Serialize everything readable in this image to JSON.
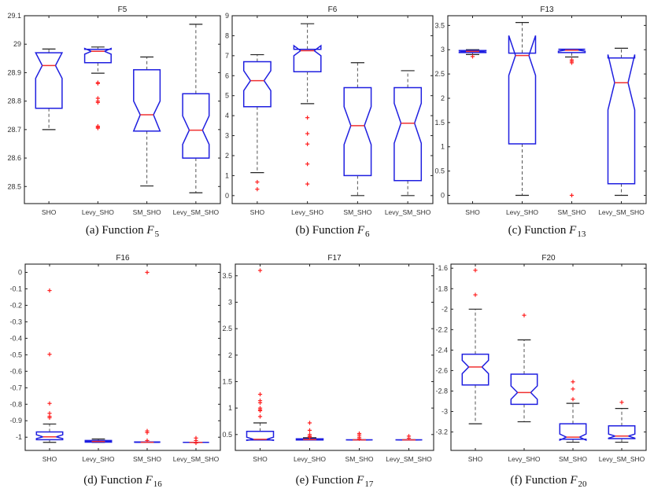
{
  "colors": {
    "box": "#1f1fe0",
    "median": "#f03030",
    "whisker": "#555555",
    "outlier": "#ff2020",
    "axis": "#222222"
  },
  "chart_data": [
    {
      "type": "boxplot",
      "title": "F5",
      "caption": {
        "prefix": "(a) Function ",
        "var": "F",
        "sub": "5"
      },
      "categories": [
        "SHO",
        "Levy_SHO",
        "SM_SHO",
        "Levy_SM_SHO"
      ],
      "ylim": [
        28.44,
        29.1
      ],
      "yticks": [
        28.5,
        28.6,
        28.7,
        28.8,
        28.9,
        29,
        29.1
      ],
      "ytick_labels": [
        "28.5",
        "28.6",
        "28.7",
        "28.8",
        "28.9",
        "29",
        "29.1"
      ],
      "boxes": [
        {
          "q1": 28.775,
          "median": 28.925,
          "q3": 28.97,
          "notch_lo": 28.88,
          "notch_hi": 28.97,
          "wlo": 28.7,
          "whi": 28.983,
          "outliers": []
        },
        {
          "q1": 28.935,
          "median": 28.975,
          "q3": 28.982,
          "notch_lo": 28.965,
          "notch_hi": 28.985,
          "wlo": 28.898,
          "whi": 28.99,
          "outliers": [
            28.862,
            28.865,
            28.81,
            28.8,
            28.795,
            28.712,
            28.708,
            28.705
          ]
        },
        {
          "q1": 28.695,
          "median": 28.752,
          "q3": 28.91,
          "notch_lo": 28.695,
          "notch_hi": 28.8,
          "wlo": 28.502,
          "whi": 28.955,
          "outliers": []
        },
        {
          "q1": 28.6,
          "median": 28.698,
          "q3": 28.826,
          "notch_lo": 28.648,
          "notch_hi": 28.748,
          "wlo": 28.478,
          "whi": 29.07,
          "outliers": []
        }
      ]
    },
    {
      "type": "boxplot",
      "title": "F6",
      "caption": {
        "prefix": "(b) Function ",
        "var": "F",
        "sub": "6"
      },
      "categories": [
        "SHO",
        "Levy_SHO",
        "SM_SHO",
        "Levy_SM_SHO"
      ],
      "ylim": [
        -0.4,
        9
      ],
      "yticks": [
        0,
        1,
        2,
        3,
        4,
        5,
        6,
        7,
        8,
        9
      ],
      "ytick_labels": [
        "0",
        "1",
        "2",
        "3",
        "4",
        "5",
        "6",
        "7",
        "8",
        "9"
      ],
      "boxes": [
        {
          "q1": 4.45,
          "median": 5.75,
          "q3": 6.7,
          "notch_lo": 5.25,
          "notch_hi": 6.25,
          "wlo": 1.15,
          "whi": 7.05,
          "outliers": [
            0.68,
            0.32
          ]
        },
        {
          "q1": 6.2,
          "median": 7.25,
          "q3": 7.32,
          "notch_lo": 7.0,
          "notch_hi": 7.5,
          "wlo": 4.6,
          "whi": 8.6,
          "outliers": [
            3.9,
            3.1,
            2.58,
            1.58,
            0.58
          ]
        },
        {
          "q1": 1.0,
          "median": 3.5,
          "q3": 5.4,
          "notch_lo": 2.55,
          "notch_hi": 4.45,
          "wlo": 0.0,
          "whi": 6.65,
          "outliers": []
        },
        {
          "q1": 0.75,
          "median": 3.62,
          "q3": 5.4,
          "notch_lo": 2.62,
          "notch_hi": 4.62,
          "wlo": 0.0,
          "whi": 6.25,
          "outliers": []
        }
      ]
    },
    {
      "type": "boxplot",
      "title": "F13",
      "caption": {
        "prefix": "(c) Function ",
        "var": "F",
        "sub": "13"
      },
      "categories": [
        "SHO",
        "Levy_SHO",
        "SM_SHO",
        "Levy_SM_SHO"
      ],
      "ylim": [
        -0.17,
        3.7
      ],
      "yticks": [
        0,
        0.5,
        1,
        1.5,
        2,
        2.5,
        3,
        3.5
      ],
      "ytick_labels": [
        "0",
        "0.5",
        "1",
        "1.5",
        "2",
        "2.5",
        "3",
        "3.5"
      ],
      "boxes": [
        {
          "q1": 2.94,
          "median": 2.965,
          "q3": 2.985,
          "notch_lo": 2.95,
          "notch_hi": 2.98,
          "wlo": 2.9,
          "whi": 3.0,
          "outliers": [
            2.86
          ]
        },
        {
          "q1": 1.06,
          "median": 2.88,
          "q3": 2.93,
          "notch_lo": 2.47,
          "notch_hi": 3.29,
          "wlo": 0.0,
          "whi": 3.56,
          "outliers": []
        },
        {
          "q1": 2.94,
          "median": 2.99,
          "q3": 3.01,
          "notch_lo": 2.97,
          "notch_hi": 3.01,
          "wlo": 2.85,
          "whi": 3.01,
          "outliers": [
            2.79,
            2.76,
            2.73,
            0.0
          ]
        },
        {
          "q1": 0.24,
          "median": 2.32,
          "q3": 2.83,
          "notch_lo": 1.76,
          "notch_hi": 2.9,
          "wlo": 0.0,
          "whi": 3.03,
          "outliers": []
        }
      ]
    },
    {
      "type": "boxplot",
      "title": "F16",
      "caption": {
        "prefix": "(d) Function ",
        "var": "F",
        "sub": "16"
      },
      "categories": [
        "SHO",
        "Levy_SHO",
        "SM_SHO",
        "Levy_SM_SHO"
      ],
      "ylim": [
        -1.08,
        0.05
      ],
      "yticks": [
        -1,
        -0.9,
        -0.8,
        -0.7,
        -0.6,
        -0.5,
        -0.4,
        -0.3,
        -0.2,
        -0.1,
        0
      ],
      "ytick_labels": [
        "-1",
        "-0.9",
        "-0.8",
        "-0.7",
        "-0.6",
        "-0.5",
        "-0.4",
        "-0.3",
        "-0.2",
        "-0.1",
        "0"
      ],
      "boxes": [
        {
          "q1": -1.015,
          "median": -0.998,
          "q3": -0.968,
          "notch_lo": -1.008,
          "notch_hi": -0.985,
          "wlo": -1.031,
          "whi": -0.92,
          "outliers": [
            -0.11,
            -0.497,
            -0.795,
            -0.855,
            -0.873,
            -0.882
          ]
        },
        {
          "q1": -1.03,
          "median": -1.026,
          "q3": -1.02,
          "notch_lo": -1.028,
          "notch_hi": -1.022,
          "wlo": -1.031,
          "whi": -1.011,
          "outliers": []
        },
        {
          "q1": -1.031,
          "median": -1.0305,
          "q3": -1.029,
          "notch_lo": -1.031,
          "notch_hi": -1.029,
          "wlo": -1.0316,
          "whi": -1.028,
          "outliers": [
            0.0,
            -0.962,
            -0.972,
            -1.02
          ]
        },
        {
          "q1": -1.0316,
          "median": -1.0315,
          "q3": -1.031,
          "notch_lo": -1.0316,
          "notch_hi": -1.031,
          "wlo": -1.0316,
          "whi": -1.031,
          "outliers": [
            -1.005,
            -1.02,
            -1.035
          ]
        }
      ]
    },
    {
      "type": "boxplot",
      "title": "F17",
      "caption": {
        "prefix": "(e) Function ",
        "var": "F",
        "sub": "17"
      },
      "categories": [
        "SHO",
        "Levy_SHO",
        "SM_SHO",
        "Levy_SM_SHO"
      ],
      "ylim": [
        0.2,
        3.72
      ],
      "yticks": [
        0.5,
        1,
        1.5,
        2,
        2.5,
        3,
        3.5
      ],
      "ytick_labels": [
        "0.5",
        "1",
        "1.5",
        "2",
        "2.5",
        "3",
        "3.5"
      ],
      "boxes": [
        {
          "q1": 0.398,
          "median": 0.41,
          "q3": 0.56,
          "notch_lo": 0.39,
          "notch_hi": 0.45,
          "wlo": 0.398,
          "whi": 0.72,
          "outliers": [
            3.6,
            1.26,
            1.14,
            1.1,
            1.0,
            0.97,
            0.95,
            0.84
          ]
        },
        {
          "q1": 0.398,
          "median": 0.405,
          "q3": 0.42,
          "notch_lo": 0.4,
          "notch_hi": 0.415,
          "wlo": 0.398,
          "whi": 0.44,
          "outliers": [
            0.72,
            0.58,
            0.5,
            0.47,
            0.45
          ]
        },
        {
          "q1": 0.398,
          "median": 0.3985,
          "q3": 0.4,
          "notch_lo": 0.398,
          "notch_hi": 0.4,
          "wlo": 0.398,
          "whi": 0.4,
          "outliers": [
            0.52,
            0.49,
            0.45,
            0.42
          ]
        },
        {
          "q1": 0.398,
          "median": 0.3985,
          "q3": 0.4,
          "notch_lo": 0.398,
          "notch_hi": 0.4,
          "wlo": 0.398,
          "whi": 0.4,
          "outliers": [
            0.47,
            0.43
          ]
        }
      ]
    },
    {
      "type": "boxplot",
      "title": "F20",
      "caption": {
        "prefix": "(f) Function ",
        "var": "F",
        "sub": "20"
      },
      "categories": [
        "SHO",
        "Levy_SHO",
        "SM_SHO",
        "Levy_SM_SHO"
      ],
      "ylim": [
        -3.38,
        -1.56
      ],
      "yticks": [
        -3.2,
        -3,
        -2.8,
        -2.6,
        -2.4,
        -2.2,
        -2,
        -1.8,
        -1.6
      ],
      "ytick_labels": [
        "-3.2",
        "-3",
        "-2.8",
        "-2.6",
        "-2.4",
        "-2.2",
        "-2",
        "-1.8",
        "-1.6"
      ],
      "boxes": [
        {
          "q1": -2.74,
          "median": -2.565,
          "q3": -2.44,
          "notch_lo": -2.63,
          "notch_hi": -2.5,
          "wlo": -3.12,
          "whi": -2.0,
          "outliers": [
            -1.62,
            -1.86
          ]
        },
        {
          "q1": -2.93,
          "median": -2.815,
          "q3": -2.635,
          "notch_lo": -2.88,
          "notch_hi": -2.75,
          "wlo": -3.1,
          "whi": -2.3,
          "outliers": [
            -2.06
          ]
        },
        {
          "q1": -3.27,
          "median": -3.25,
          "q3": -3.12,
          "notch_lo": -3.28,
          "notch_hi": -3.22,
          "wlo": -3.3,
          "whi": -2.92,
          "outliers": [
            -2.71,
            -2.78,
            -2.88
          ]
        },
        {
          "q1": -3.265,
          "median": -3.24,
          "q3": -3.14,
          "notch_lo": -3.26,
          "notch_hi": -3.22,
          "wlo": -3.3,
          "whi": -2.97,
          "outliers": [
            -2.91
          ]
        }
      ]
    }
  ]
}
